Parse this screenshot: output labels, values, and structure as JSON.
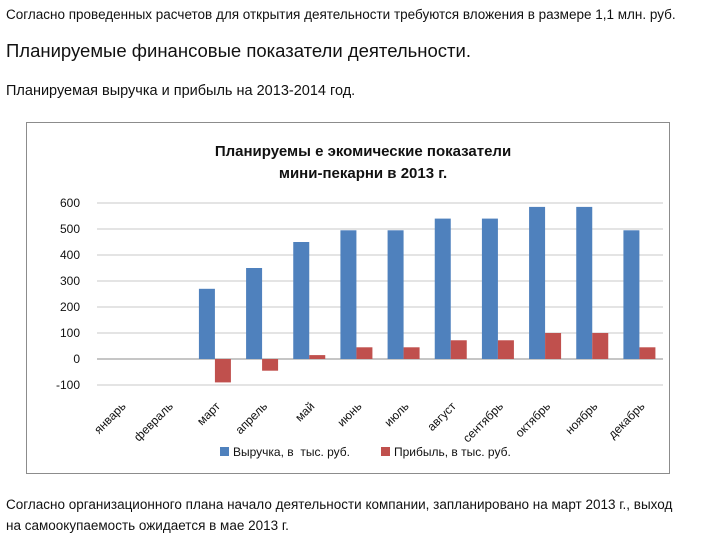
{
  "text": {
    "intro": "Согласно проведенных расчетов для открытия деятельности требуются вложения в размере 1,1 млн. руб.",
    "heading": "Планируемые финансовые показатели деятельности.",
    "subheading": "Планируемая выручка и прибыль на 2013-2014 год.",
    "outro_line1": "Согласно организационного плана начало деятельности компании, запланировано на март 2013 г., выход",
    "outro_line2": "на самоокупаемость ожидается в мае 2013 г."
  },
  "chart_data": {
    "type": "bar",
    "title_line1": "Планируемы е экомические показатели",
    "title_line2": "мини-пекарни в 2013 г.",
    "categories": [
      "январь",
      "февраль",
      "март",
      "апрель",
      "май",
      "июнь",
      "июль",
      "август",
      "сентябрь",
      "октябрь",
      "ноябрь",
      "декабрь"
    ],
    "series": [
      {
        "name": "Выручка, в  тыс. руб.",
        "color": "#4f81bd",
        "values": [
          0,
          0,
          270,
          350,
          450,
          495,
          495,
          540,
          540,
          585,
          585,
          495
        ]
      },
      {
        "name": "Прибыль, в тыс. руб.",
        "color": "#c0504d",
        "values": [
          0,
          0,
          -90,
          -45,
          15,
          45,
          45,
          72,
          72,
          100,
          100,
          45
        ]
      }
    ],
    "yticks": [
      "-100",
      "0",
      "100",
      "200",
      "300",
      "400",
      "500",
      "600"
    ],
    "ylim": [
      -100,
      600
    ],
    "grid": true,
    "legend": "bottom"
  }
}
